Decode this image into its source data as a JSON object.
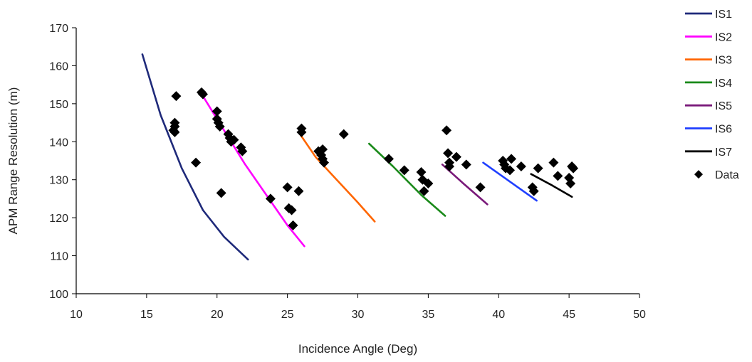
{
  "chart_data": {
    "type": "scatter",
    "title": "",
    "xlabel": "Incidence Angle (Deg)",
    "ylabel": "APM Range Resolution (m)",
    "xlim": [
      10,
      50
    ],
    "ylim": [
      100,
      170
    ],
    "xticks": [
      10,
      15,
      20,
      25,
      30,
      35,
      40,
      45,
      50
    ],
    "yticks": [
      100,
      110,
      120,
      130,
      140,
      150,
      160,
      170
    ],
    "xtick_labels": [
      "10",
      "15",
      "20",
      "25",
      "30",
      "35",
      "40",
      "45",
      "50"
    ],
    "ytick_labels": [
      "100",
      "110",
      "120",
      "130",
      "140",
      "150",
      "160",
      "170"
    ],
    "grid": false,
    "legend_position": "top-right",
    "series": [
      {
        "name": "IS1",
        "kind": "line",
        "color": "#1f2a7a",
        "x": [
          14.7,
          16.0,
          17.5,
          19.0,
          20.5,
          22.2
        ],
        "y": [
          163,
          147,
          133,
          122,
          115,
          109
        ]
      },
      {
        "name": "IS2",
        "kind": "line",
        "color": "#ff00ff",
        "x": [
          19.0,
          20.5,
          22.0,
          23.5,
          25.0,
          26.2
        ],
        "y": [
          152,
          143,
          134,
          126,
          118,
          112.5
        ]
      },
      {
        "name": "IS3",
        "kind": "line",
        "color": "#ff6600",
        "x": [
          25.8,
          27.0,
          28.5,
          30.0,
          31.2
        ],
        "y": [
          142.5,
          136,
          130,
          124,
          119
        ]
      },
      {
        "name": "IS4",
        "kind": "line",
        "color": "#1a8a1a",
        "x": [
          30.8,
          32.5,
          34.5,
          36.2
        ],
        "y": [
          139.5,
          133.5,
          126,
          120.5
        ]
      },
      {
        "name": "IS5",
        "kind": "line",
        "color": "#7a1a7a",
        "x": [
          36.0,
          37.5,
          39.2
        ],
        "y": [
          134,
          129,
          123.5
        ]
      },
      {
        "name": "IS6",
        "kind": "line",
        "color": "#1f3fff",
        "x": [
          38.9,
          40.8,
          42.7
        ],
        "y": [
          134.5,
          129.5,
          124.5
        ]
      },
      {
        "name": "IS7",
        "kind": "line",
        "color": "#000000",
        "x": [
          42.3,
          43.8,
          45.2
        ],
        "y": [
          131.5,
          128.5,
          125.5
        ]
      },
      {
        "name": "Data",
        "kind": "scatter",
        "color": "#000000",
        "x": [
          16.9,
          17.0,
          17.0,
          17.0,
          17.1,
          18.5,
          18.9,
          19.0,
          20.0,
          20.0,
          20.1,
          20.2,
          20.3,
          20.8,
          20.9,
          21.0,
          21.2,
          21.7,
          21.8,
          23.8,
          25.0,
          25.1,
          25.3,
          25.4,
          25.8,
          26.0,
          26.0,
          27.2,
          27.4,
          27.5,
          27.5,
          27.6,
          29.0,
          32.2,
          33.3,
          34.5,
          34.6,
          34.7,
          35.0,
          36.3,
          36.4,
          36.5,
          36.5,
          37.0,
          37.7,
          38.7,
          40.3,
          40.4,
          40.5,
          40.8,
          40.9,
          41.6,
          42.4,
          42.5,
          42.8,
          43.9,
          44.2,
          45.0,
          45.1,
          45.2,
          45.3
        ],
        "y": [
          143,
          144,
          145,
          142.5,
          152,
          134.5,
          153,
          152.5,
          148,
          146,
          145,
          144,
          126.5,
          142,
          141,
          140,
          140.5,
          138.5,
          137.5,
          125,
          128,
          122.5,
          122,
          118,
          127,
          143.5,
          142.5,
          137.5,
          136.5,
          138,
          135.5,
          134.5,
          142,
          135.5,
          132.5,
          132,
          130,
          127,
          129,
          143,
          137,
          134.5,
          133.5,
          136,
          134,
          128,
          135,
          134,
          133,
          132.5,
          135.5,
          133.5,
          128,
          127,
          133,
          134.5,
          131,
          130.5,
          129,
          133.5,
          133
        ]
      }
    ]
  }
}
